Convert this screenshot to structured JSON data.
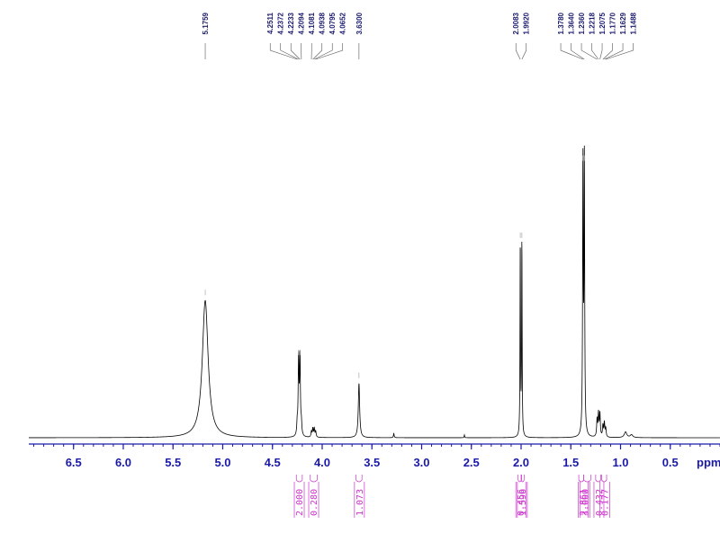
{
  "chart_data": {
    "type": "line",
    "title": "",
    "xlabel": "ppm",
    "ylabel": "",
    "xlim": [
      6.95,
      0.0
    ],
    "x_reversed": true,
    "grid": false,
    "x_ticks": [
      "6.5",
      "6.0",
      "5.5",
      "5.0",
      "4.5",
      "4.0",
      "3.5",
      "3.0",
      "2.5",
      "2.0",
      "1.5",
      "1.0",
      "0.5"
    ],
    "x_tick_values": [
      6.5,
      6.0,
      5.5,
      5.0,
      4.5,
      4.0,
      3.5,
      3.0,
      2.5,
      2.0,
      1.5,
      1.0,
      0.5
    ],
    "peaks": [
      {
        "ppm": 5.1759,
        "height": 0.48,
        "width": 0.035
      },
      {
        "ppm": 4.2511,
        "height": 0.04,
        "width": 0.005
      },
      {
        "ppm": 4.2372,
        "height": 0.27,
        "width": 0.005
      },
      {
        "ppm": 4.2233,
        "height": 0.27,
        "width": 0.005
      },
      {
        "ppm": 4.2094,
        "height": 0.04,
        "width": 0.005
      },
      {
        "ppm": 4.1081,
        "height": 0.02,
        "width": 0.005
      },
      {
        "ppm": 4.0938,
        "height": 0.03,
        "width": 0.005
      },
      {
        "ppm": 4.0795,
        "height": 0.03,
        "width": 0.005
      },
      {
        "ppm": 4.0652,
        "height": 0.02,
        "width": 0.005
      },
      {
        "ppm": 3.63,
        "height": 0.19,
        "width": 0.008
      },
      {
        "ppm": 2.0083,
        "height": 0.68,
        "width": 0.003
      },
      {
        "ppm": 1.992,
        "height": 0.68,
        "width": 0.003
      },
      {
        "ppm": 1.378,
        "height": 0.95,
        "width": 0.004
      },
      {
        "ppm": 1.364,
        "height": 0.95,
        "width": 0.004
      },
      {
        "ppm": 1.236,
        "height": 0.06,
        "width": 0.005
      },
      {
        "ppm": 1.2218,
        "height": 0.08,
        "width": 0.005
      },
      {
        "ppm": 1.2075,
        "height": 0.08,
        "width": 0.005
      },
      {
        "ppm": 1.177,
        "height": 0.04,
        "width": 0.005
      },
      {
        "ppm": 1.1629,
        "height": 0.05,
        "width": 0.005
      },
      {
        "ppm": 1.1488,
        "height": 0.03,
        "width": 0.005
      },
      {
        "ppm": 3.28,
        "height": 0.015,
        "width": 0.004
      },
      {
        "ppm": 2.57,
        "height": 0.01,
        "width": 0.003
      },
      {
        "ppm": 0.95,
        "height": 0.02,
        "width": 0.015
      },
      {
        "ppm": 0.89,
        "height": 0.01,
        "width": 0.015
      }
    ],
    "peak_labels": [
      {
        "text": "5.1759",
        "ppm": 5.1759
      },
      {
        "text": "4.2511",
        "ppm": 4.2511
      },
      {
        "text": "4.2372",
        "ppm": 4.2372
      },
      {
        "text": "4.2233",
        "ppm": 4.2233
      },
      {
        "text": "4.2094",
        "ppm": 4.2094
      },
      {
        "text": "4.1081",
        "ppm": 4.1081
      },
      {
        "text": "4.0938",
        "ppm": 4.0938
      },
      {
        "text": "4.0795",
        "ppm": 4.0795
      },
      {
        "text": "4.0652",
        "ppm": 4.0652
      },
      {
        "text": "3.6300",
        "ppm": 3.63
      },
      {
        "text": "2.0083",
        "ppm": 2.0083
      },
      {
        "text": "1.9920",
        "ppm": 1.992
      },
      {
        "text": "1.3780",
        "ppm": 1.378
      },
      {
        "text": "1.3640",
        "ppm": 1.364
      },
      {
        "text": "1.2360",
        "ppm": 1.236
      },
      {
        "text": "1.2218",
        "ppm": 1.2218
      },
      {
        "text": "1.2075",
        "ppm": 1.2075
      },
      {
        "text": "1.1770",
        "ppm": 1.177
      },
      {
        "text": "1.1629",
        "ppm": 1.1629
      },
      {
        "text": "1.1488",
        "ppm": 1.1488
      }
    ],
    "integrals": [
      {
        "text": "2.000",
        "from": 4.26,
        "to": 4.2,
        "center": 4.235
      },
      {
        "text": "0.280",
        "from": 4.12,
        "to": 4.05,
        "center": 4.09
      },
      {
        "text": "1.073",
        "from": 3.66,
        "to": 3.6,
        "center": 3.63
      },
      {
        "text": "0.456",
        "from": 2.03,
        "to": 1.995,
        "center": 2.007
      },
      {
        "text": "1.596",
        "from": 2.0,
        "to": 1.97,
        "center": 1.992
      },
      {
        "text": "2.861",
        "from": 1.42,
        "to": 1.37,
        "center": 1.38
      },
      {
        "text": "3.000",
        "from": 1.37,
        "to": 1.3,
        "center": 1.364
      },
      {
        "text": "0.432",
        "from": 1.25,
        "to": 1.2,
        "center": 1.222
      },
      {
        "text": "0.177",
        "from": 1.19,
        "to": 1.14,
        "center": 1.163
      }
    ],
    "colors": {
      "spectrum": "#000000",
      "axis": "#1a1aa8",
      "peak_label": "#1a1a6e",
      "peak_leader": "#555555",
      "integral": "#cc33cc"
    }
  }
}
